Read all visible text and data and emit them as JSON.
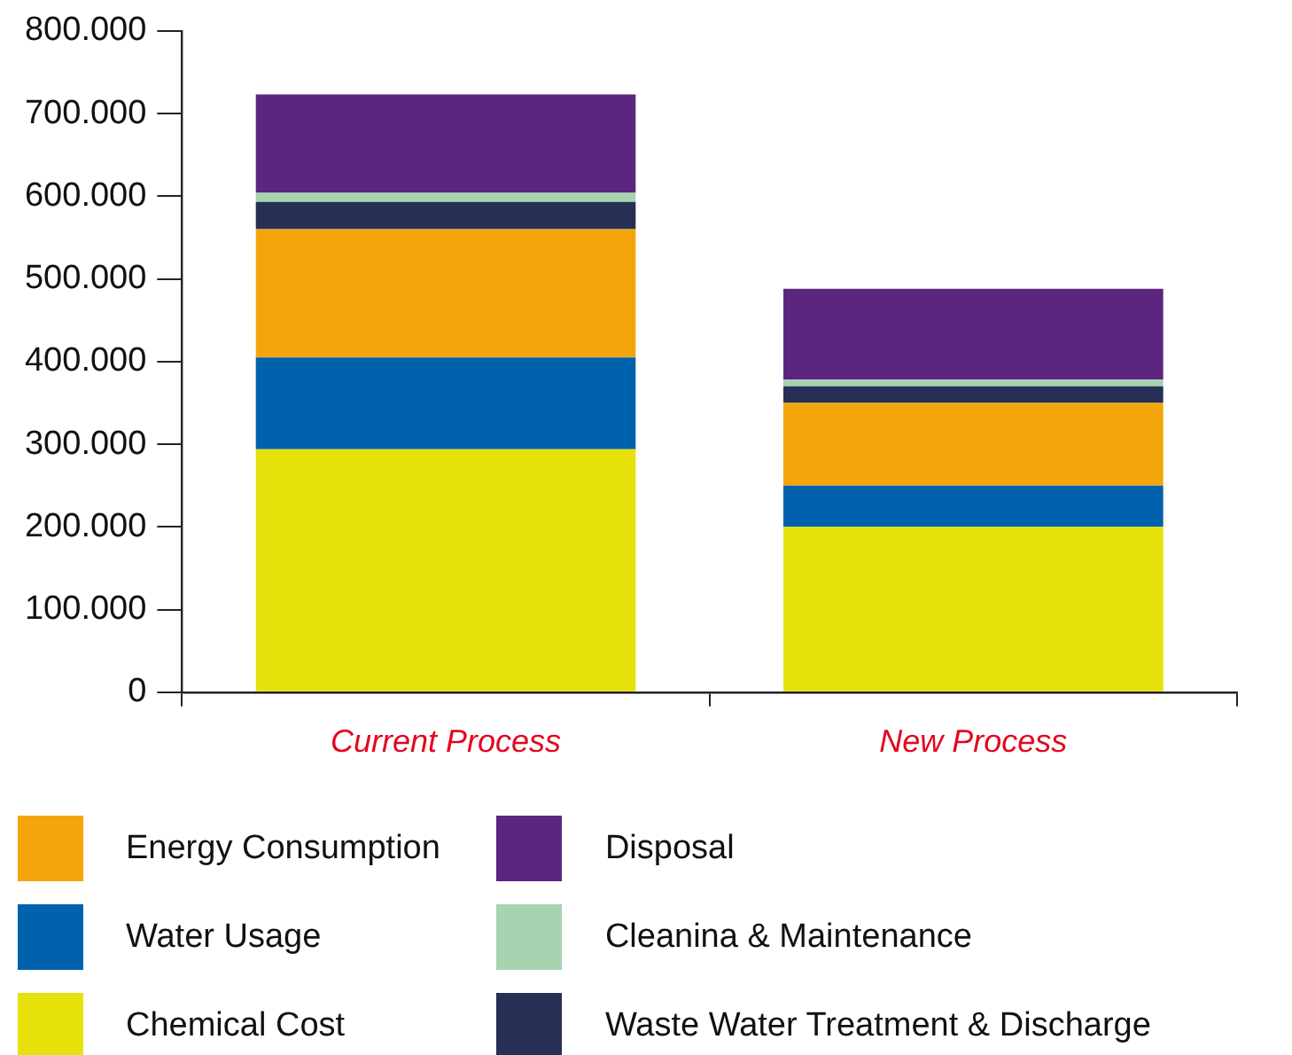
{
  "chart_data": {
    "type": "bar",
    "stacked": true,
    "categories": [
      "Current Process",
      "New Process"
    ],
    "series": [
      {
        "name": "Chemical Cost",
        "color": "#e6e10a",
        "values": [
          294000,
          200000
        ]
      },
      {
        "name": "Water Usage",
        "color": "#0061ad",
        "values": [
          111000,
          50000
        ]
      },
      {
        "name": "Energy Consumption",
        "color": "#f5a50c",
        "values": [
          155000,
          100000
        ]
      },
      {
        "name": "Waste Water Treatment & Discharge",
        "color": "#272f55",
        "values": [
          33000,
          20000
        ]
      },
      {
        "name": "Cleanina & Maintenance",
        "color": "#a6d4b0",
        "values": [
          11000,
          8000
        ]
      },
      {
        "name": "Disposal",
        "color": "#5c2580",
        "values": [
          119000,
          110000
        ]
      }
    ],
    "ylim": [
      0,
      800000
    ],
    "yticks": [
      0,
      {
        "value": 100000,
        "label": "100.000"
      },
      {
        "value": 200000,
        "label": "200.000"
      },
      {
        "value": 300000,
        "label": "300.000"
      },
      {
        "value": 400000,
        "label": "400.000"
      },
      {
        "value": 500000,
        "label": "500.000"
      },
      {
        "value": 600000,
        "label": "600.000"
      },
      {
        "value": 700000,
        "label": "700.000"
      },
      {
        "value": 800000,
        "label": "800.000"
      }
    ],
    "grid": false,
    "legend": "bottom"
  }
}
